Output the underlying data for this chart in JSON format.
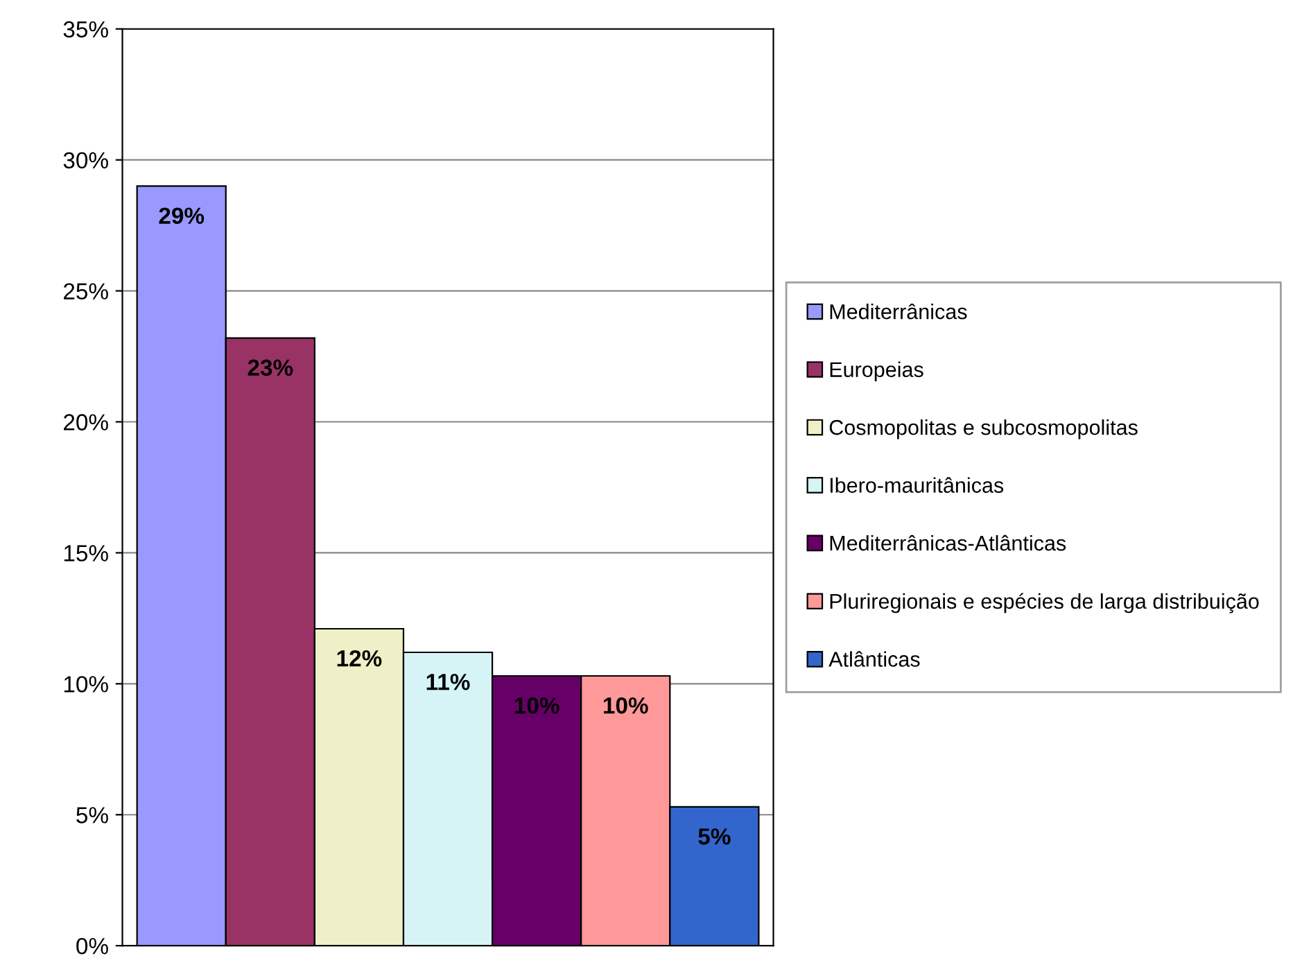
{
  "chart_data": {
    "type": "bar",
    "categories": [
      null
    ],
    "ylim": [
      0,
      35
    ],
    "yticks": [
      {
        "value": 0,
        "label": "0%"
      },
      {
        "value": 5,
        "label": "5%"
      },
      {
        "value": 10,
        "label": "10%"
      },
      {
        "value": 15,
        "label": "15%"
      },
      {
        "value": 20,
        "label": "20%"
      },
      {
        "value": 25,
        "label": "25%"
      },
      {
        "value": 30,
        "label": "30%"
      },
      {
        "value": 35,
        "label": "35%"
      }
    ],
    "grid": "y",
    "legend": "right",
    "series": [
      {
        "name": "Mediterrânicas",
        "color": "#9999ff",
        "values": [
          29.0
        ],
        "value_labels": [
          "29%"
        ]
      },
      {
        "name": "Europeias",
        "color": "#993366",
        "values": [
          23.2
        ],
        "value_labels": [
          "23%"
        ]
      },
      {
        "name": "Cosmopolitas e subcosmopolitas",
        "color": "#f0f0c8",
        "values": [
          12.1
        ],
        "value_labels": [
          "12%"
        ]
      },
      {
        "name": "Ibero-mauritânicas",
        "color": "#d6f4f6",
        "values": [
          11.2
        ],
        "value_labels": [
          "11%"
        ]
      },
      {
        "name": "Mediterrânicas-Atlânticas",
        "color": "#660066",
        "values": [
          10.3
        ],
        "value_labels": [
          "10%"
        ]
      },
      {
        "name": "Pluriregionais e espécies de larga distribuição",
        "color": "#ff9999",
        "values": [
          10.3
        ],
        "value_labels": [
          "10%"
        ]
      },
      {
        "name": "Atlânticas",
        "color": "#3366cc",
        "values": [
          5.3
        ],
        "value_labels": [
          "5%"
        ]
      }
    ]
  }
}
